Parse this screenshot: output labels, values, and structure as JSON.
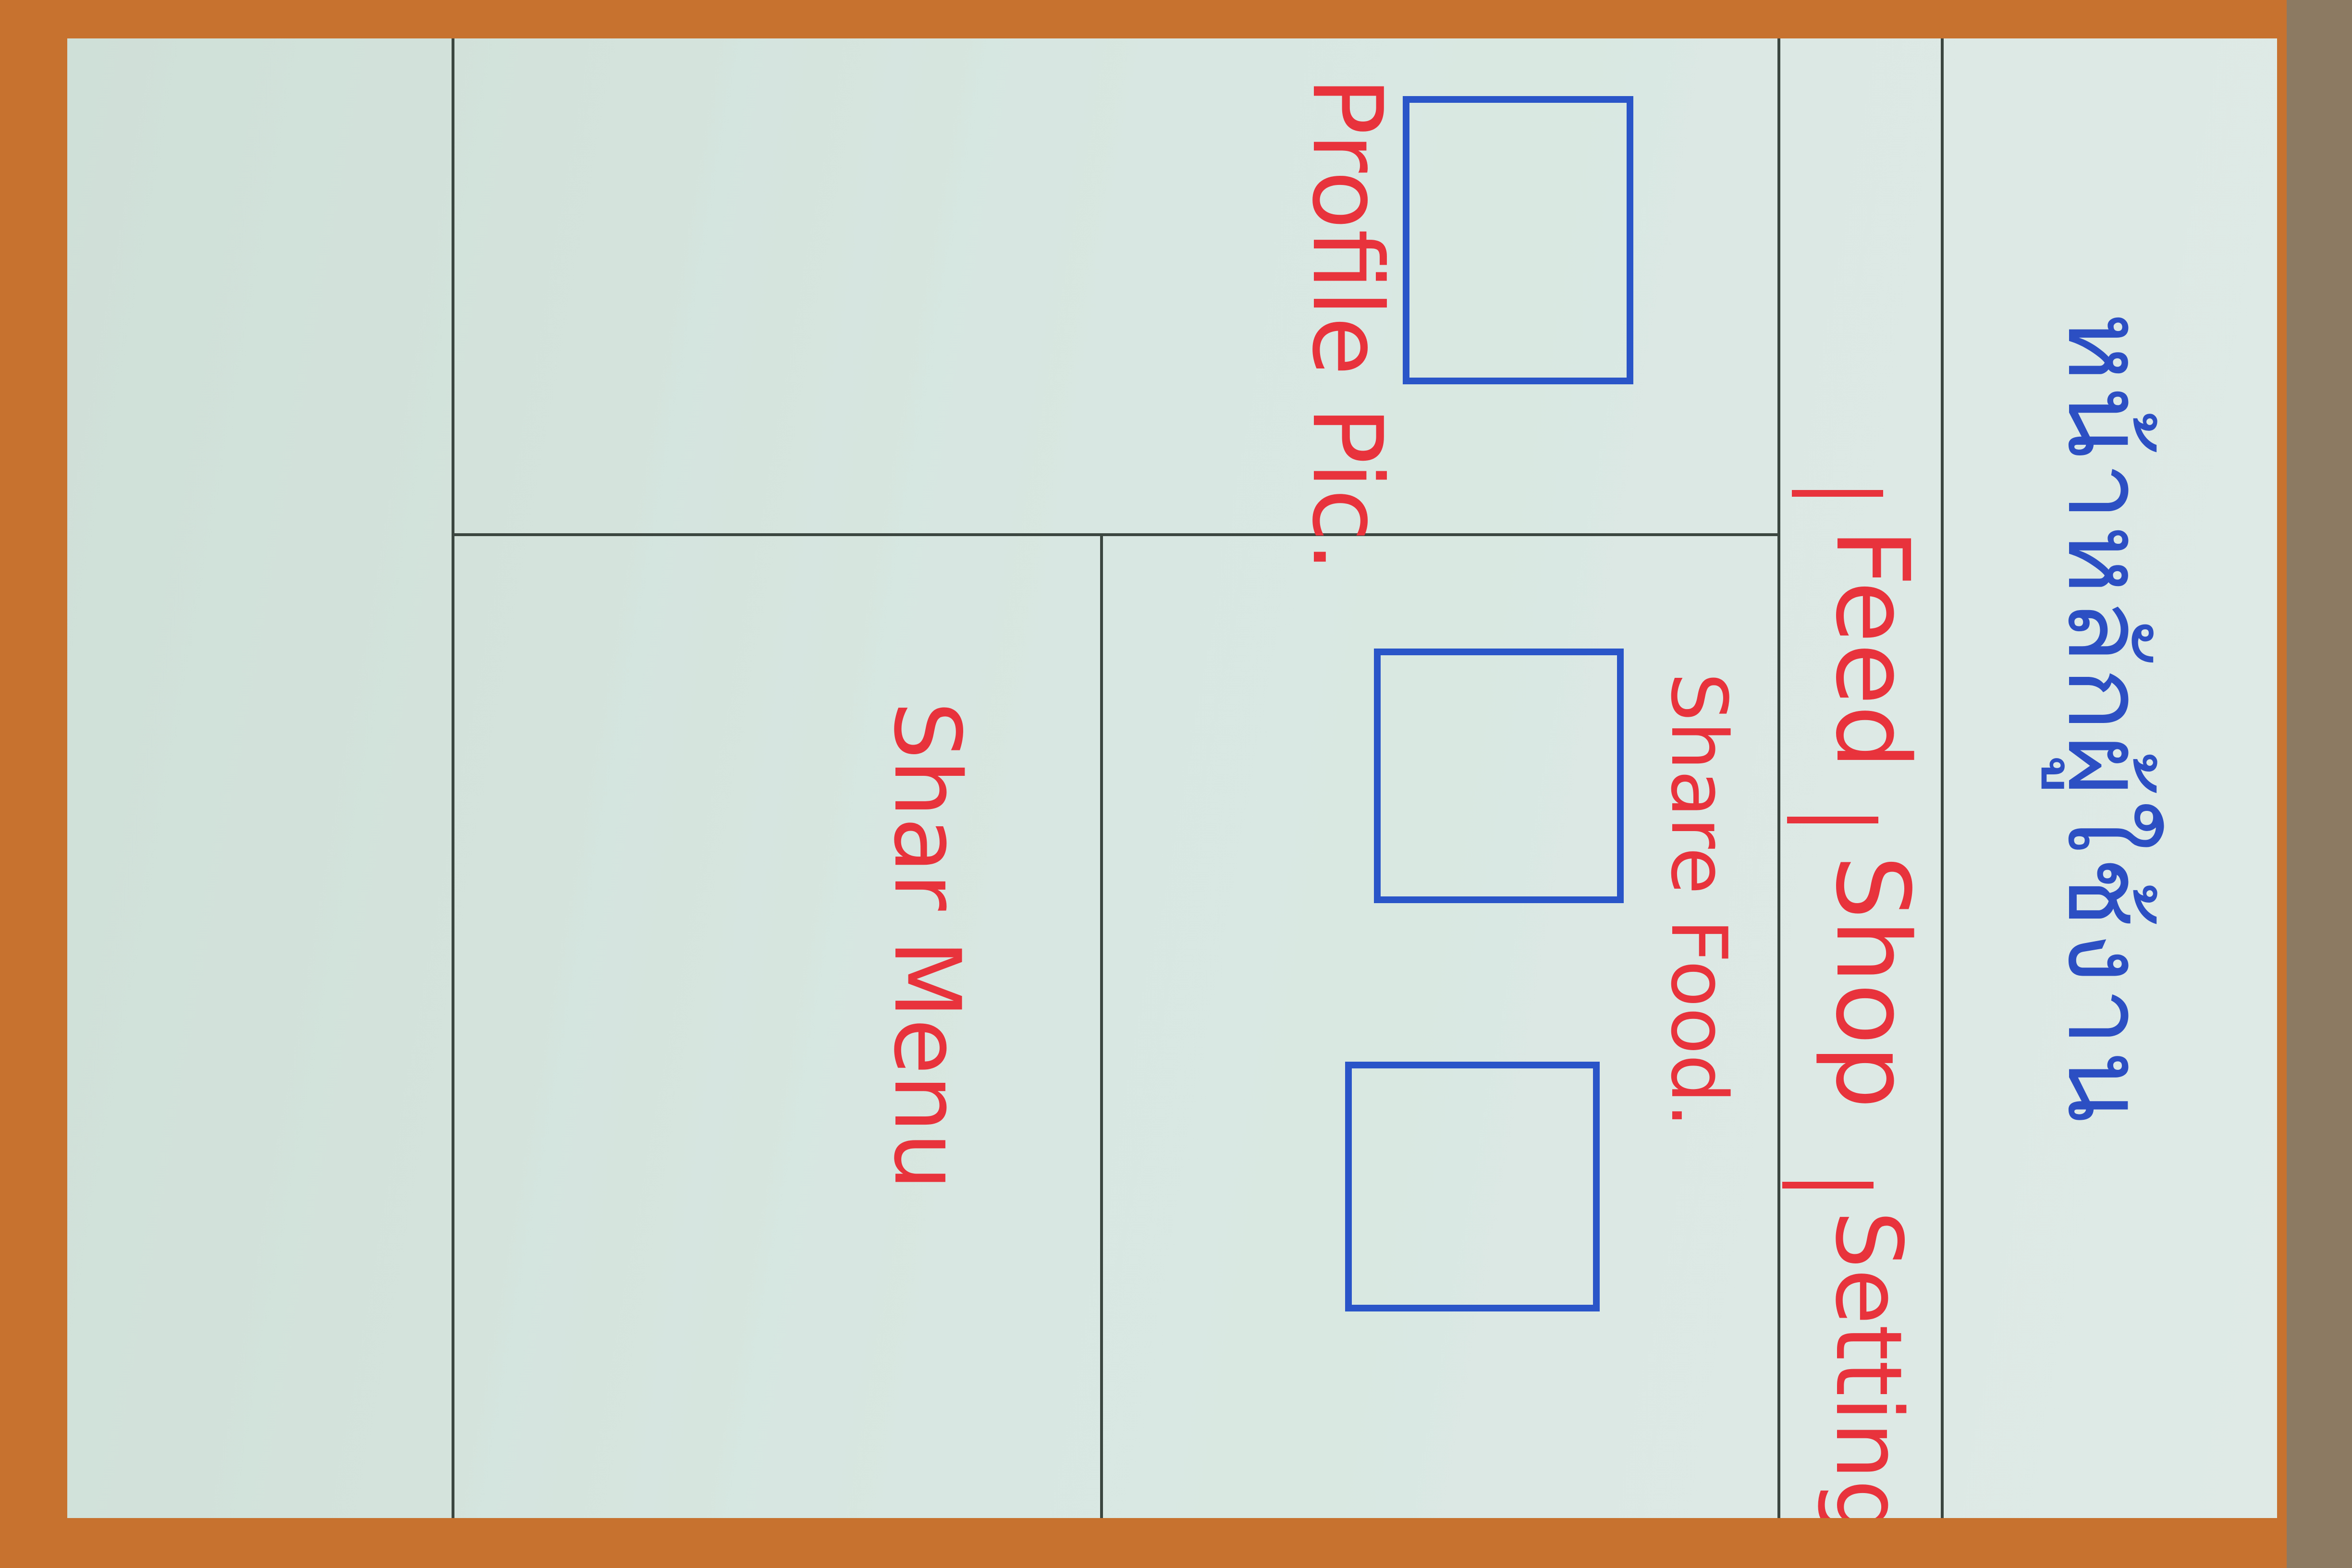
{
  "whiteboard": {
    "title": "หน้าหลักผู้ใช้งาน",
    "nav_tabs": [
      "Feed",
      "Shop",
      "Setting"
    ],
    "profile_label": "Profile Pic.",
    "share_food_label": "Share Food.",
    "share_menu_label": "Shar Menu"
  },
  "colors": {
    "red_marker": "#e8323c",
    "blue_marker": "#2a55c9",
    "frame": "#c8722f"
  }
}
